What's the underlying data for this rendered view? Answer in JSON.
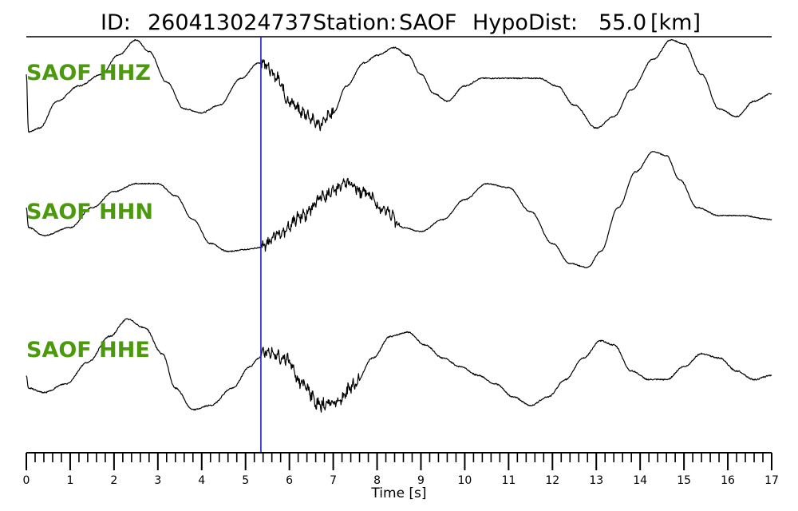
{
  "header": {
    "id_label": "ID:",
    "event_id": "260413024737",
    "station_label": "Station:",
    "station": "SAOF",
    "hypodist_label": "HypoDist:",
    "hypodist_value": "55.0",
    "hypodist_unit": "[km]"
  },
  "chart_data": {
    "type": "line",
    "title": "ID: 260413024737   Station: SAOF   HypoDist:     55.0 [km]",
    "xlabel": "Time [s]",
    "ylabel": "",
    "xlim": [
      0,
      17
    ],
    "xticks": [
      "0",
      "1",
      "2",
      "3",
      "4",
      "5",
      "6",
      "7",
      "8",
      "9",
      "10",
      "11",
      "12",
      "13",
      "14",
      "15",
      "16",
      "17"
    ],
    "minor_tick_step": 0.2,
    "marker": {
      "time": 5.35,
      "color": "#1f1fd0"
    },
    "colors": {
      "trace": "#000000",
      "label": "#4a9a0c"
    },
    "series": [
      {
        "name": "SAOF HHZ",
        "noise": 0.03,
        "noisy_ranges": [
          [
            5.35,
            7.0
          ]
        ],
        "points": [
          [
            0,
            0.6
          ],
          [
            0.05,
            -0.9
          ],
          [
            0.3,
            -0.8
          ],
          [
            0.7,
            -0.1
          ],
          [
            1.2,
            0.3
          ],
          [
            1.7,
            0.6
          ],
          [
            2.1,
            1.1
          ],
          [
            2.5,
            1.5
          ],
          [
            2.8,
            1.2
          ],
          [
            3.2,
            0.4
          ],
          [
            3.6,
            -0.3
          ],
          [
            4.0,
            -0.4
          ],
          [
            4.4,
            -0.2
          ],
          [
            4.9,
            0.5
          ],
          [
            5.3,
            0.9
          ],
          [
            5.45,
            0.9
          ],
          [
            5.7,
            0.5
          ],
          [
            6.0,
            -0.1
          ],
          [
            6.3,
            -0.4
          ],
          [
            6.7,
            -0.7
          ],
          [
            7.0,
            -0.4
          ],
          [
            7.3,
            0.3
          ],
          [
            7.7,
            0.9
          ],
          [
            8.0,
            1.1
          ],
          [
            8.4,
            1.3
          ],
          [
            8.7,
            1.1
          ],
          [
            9.0,
            0.6
          ],
          [
            9.3,
            0.1
          ],
          [
            9.6,
            -0.1
          ],
          [
            10.0,
            0.3
          ],
          [
            10.4,
            0.5
          ],
          [
            10.8,
            0.5
          ],
          [
            11.2,
            0.5
          ],
          [
            11.7,
            0.5
          ],
          [
            12.1,
            0.3
          ],
          [
            12.5,
            -0.2
          ],
          [
            13.0,
            -0.8
          ],
          [
            13.4,
            -0.5
          ],
          [
            13.8,
            0.2
          ],
          [
            14.3,
            1.0
          ],
          [
            14.7,
            1.5
          ],
          [
            15.0,
            1.4
          ],
          [
            15.4,
            0.6
          ],
          [
            15.8,
            -0.3
          ],
          [
            16.2,
            -0.5
          ],
          [
            16.6,
            -0.1
          ],
          [
            17.0,
            0.1
          ]
        ]
      },
      {
        "name": "SAOF HHN",
        "noise": 0.025,
        "noisy_ranges": [
          [
            5.35,
            8.5
          ]
        ],
        "points": [
          [
            0,
            0.3
          ],
          [
            0.05,
            -0.2
          ],
          [
            0.4,
            -0.4
          ],
          [
            1.0,
            -0.2
          ],
          [
            1.5,
            0.3
          ],
          [
            2.0,
            0.7
          ],
          [
            2.5,
            0.9
          ],
          [
            3.0,
            0.9
          ],
          [
            3.4,
            0.6
          ],
          [
            3.8,
            0.0
          ],
          [
            4.2,
            -0.6
          ],
          [
            4.6,
            -0.8
          ],
          [
            5.0,
            -0.75
          ],
          [
            5.35,
            -0.7
          ],
          [
            5.8,
            -0.35
          ],
          [
            6.3,
            0.1
          ],
          [
            6.8,
            0.6
          ],
          [
            7.3,
            0.9
          ],
          [
            7.7,
            0.7
          ],
          [
            8.2,
            0.2
          ],
          [
            8.6,
            -0.2
          ],
          [
            9.0,
            -0.3
          ],
          [
            9.5,
            0.0
          ],
          [
            10.0,
            0.5
          ],
          [
            10.5,
            0.9
          ],
          [
            11.0,
            0.8
          ],
          [
            11.5,
            0.2
          ],
          [
            12.0,
            -0.6
          ],
          [
            12.4,
            -1.1
          ],
          [
            12.8,
            -1.2
          ],
          [
            13.1,
            -0.8
          ],
          [
            13.5,
            0.3
          ],
          [
            13.9,
            1.2
          ],
          [
            14.3,
            1.7
          ],
          [
            14.6,
            1.6
          ],
          [
            14.9,
            1.0
          ],
          [
            15.3,
            0.3
          ],
          [
            15.8,
            0.1
          ],
          [
            16.3,
            0.1
          ],
          [
            17.0,
            0.0
          ]
        ]
      },
      {
        "name": "SAOF HHE",
        "noise": 0.03,
        "noisy_ranges": [
          [
            5.35,
            7.6
          ]
        ],
        "points": [
          [
            0,
            0.0
          ],
          [
            0.05,
            -0.3
          ],
          [
            0.4,
            -0.4
          ],
          [
            0.9,
            -0.2
          ],
          [
            1.4,
            0.3
          ],
          [
            1.9,
            0.9
          ],
          [
            2.3,
            1.3
          ],
          [
            2.7,
            1.1
          ],
          [
            3.1,
            0.5
          ],
          [
            3.4,
            -0.3
          ],
          [
            3.8,
            -0.8
          ],
          [
            4.2,
            -0.7
          ],
          [
            4.7,
            -0.3
          ],
          [
            5.1,
            0.2
          ],
          [
            5.3,
            0.4
          ],
          [
            5.5,
            0.6
          ],
          [
            5.9,
            0.4
          ],
          [
            6.3,
            -0.2
          ],
          [
            6.7,
            -0.7
          ],
          [
            7.1,
            -0.6
          ],
          [
            7.5,
            -0.2
          ],
          [
            7.9,
            0.4
          ],
          [
            8.3,
            0.9
          ],
          [
            8.7,
            1.0
          ],
          [
            9.1,
            0.7
          ],
          [
            9.5,
            0.4
          ],
          [
            9.9,
            0.2
          ],
          [
            10.3,
            0.0
          ],
          [
            10.7,
            -0.2
          ],
          [
            11.1,
            -0.5
          ],
          [
            11.5,
            -0.7
          ],
          [
            11.9,
            -0.5
          ],
          [
            12.3,
            -0.1
          ],
          [
            12.7,
            0.4
          ],
          [
            13.1,
            0.8
          ],
          [
            13.4,
            0.7
          ],
          [
            13.8,
            0.1
          ],
          [
            14.2,
            -0.1
          ],
          [
            14.6,
            -0.1
          ],
          [
            15.0,
            0.2
          ],
          [
            15.4,
            0.5
          ],
          [
            15.8,
            0.4
          ],
          [
            16.2,
            0.1
          ],
          [
            16.6,
            -0.1
          ],
          [
            17.0,
            0.0
          ]
        ]
      }
    ]
  }
}
